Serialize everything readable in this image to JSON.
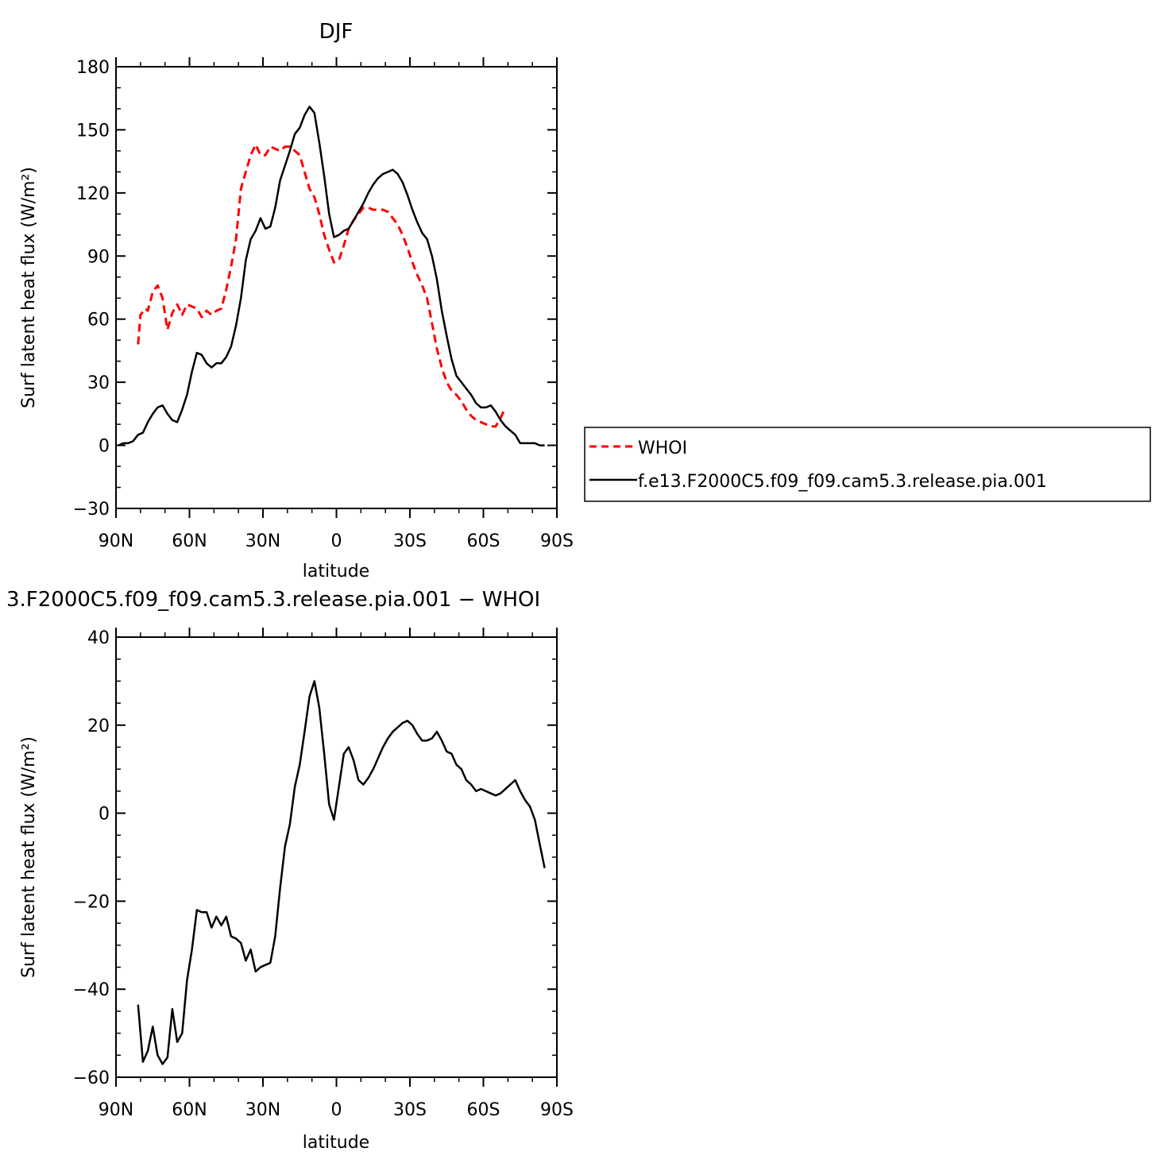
{
  "chart_data": [
    {
      "type": "line",
      "title": "DJF",
      "xlabel": "latitude",
      "ylabel": "Surf latent heat flux (W/m²)",
      "xlim": [
        -90,
        90
      ],
      "ylim": [
        -30,
        180
      ],
      "x_ticks": [
        -90,
        -60,
        -30,
        0,
        30,
        60,
        90
      ],
      "x_tick_labels": [
        "90N",
        "60N",
        "30N",
        "0",
        "30S",
        "60S",
        "90S"
      ],
      "y_ticks": [
        -30,
        0,
        30,
        60,
        90,
        120,
        150,
        180
      ],
      "y_tick_labels": [
        "−30",
        "0",
        "30",
        "60",
        "90",
        "120",
        "150",
        "180"
      ],
      "legend_position": "right",
      "series": [
        {
          "name": "WHOI",
          "color": "#ff0000",
          "dash": "dashed",
          "points": [
            [
              -81,
              48
            ],
            [
              -80,
              62
            ],
            [
              -78,
              65
            ],
            [
              -77,
              64
            ],
            [
              -75,
              73
            ],
            [
              -73,
              76
            ],
            [
              -71,
              70
            ],
            [
              -69,
              55
            ],
            [
              -67,
              63
            ],
            [
              -65,
              67
            ],
            [
              -63,
              62
            ],
            [
              -61,
              67
            ],
            [
              -59,
              66
            ],
            [
              -57,
              65
            ],
            [
              -55,
              61
            ],
            [
              -53,
              64
            ],
            [
              -51,
              62
            ],
            [
              -49,
              64
            ],
            [
              -47,
              65
            ],
            [
              -45,
              74
            ],
            [
              -43,
              85
            ],
            [
              -41,
              98
            ],
            [
              -39,
              122
            ],
            [
              -37,
              130
            ],
            [
              -35,
              138
            ],
            [
              -33,
              143
            ],
            [
              -31,
              138
            ],
            [
              -29,
              138
            ],
            [
              -27,
              142
            ],
            [
              -25,
              141
            ],
            [
              -23,
              140
            ],
            [
              -21,
              142
            ],
            [
              -19,
              142
            ],
            [
              -17,
              140
            ],
            [
              -15,
              138
            ],
            [
              -13,
              130
            ],
            [
              -11,
              122
            ],
            [
              -9,
              118
            ],
            [
              -7,
              110
            ],
            [
              -5,
              100
            ],
            [
              -3,
              93
            ],
            [
              -1,
              87
            ],
            [
              1,
              88
            ],
            [
              3,
              95
            ],
            [
              5,
              103
            ],
            [
              7,
              107
            ],
            [
              9,
              110
            ],
            [
              11,
              113
            ],
            [
              13,
              113
            ],
            [
              15,
              112
            ],
            [
              17,
              112
            ],
            [
              19,
              112
            ],
            [
              21,
              111
            ],
            [
              23,
              108
            ],
            [
              25,
              105
            ],
            [
              27,
              100
            ],
            [
              29,
              94
            ],
            [
              31,
              87
            ],
            [
              33,
              81
            ],
            [
              35,
              76
            ],
            [
              37,
              70
            ],
            [
              39,
              58
            ],
            [
              41,
              46
            ],
            [
              43,
              37
            ],
            [
              45,
              30
            ],
            [
              47,
              26
            ],
            [
              49,
              24
            ],
            [
              51,
              21
            ],
            [
              53,
              17
            ],
            [
              55,
              14
            ],
            [
              57,
              12
            ],
            [
              59,
              11
            ],
            [
              61,
              10
            ],
            [
              63,
              9
            ],
            [
              65,
              9
            ],
            [
              67,
              13
            ],
            [
              69,
              18
            ]
          ]
        },
        {
          "name": "f.e13.F2000C5.f09_f09.cam5.3.release.pia.001",
          "color": "#000000",
          "dash": "solid",
          "points": [
            [
              -89,
              0
            ],
            [
              -87,
              1
            ],
            [
              -85,
              1
            ],
            [
              -83,
              2
            ],
            [
              -81,
              5
            ],
            [
              -79,
              6
            ],
            [
              -77,
              11
            ],
            [
              -75,
              15
            ],
            [
              -73,
              18
            ],
            [
              -71,
              19
            ],
            [
              -69,
              15
            ],
            [
              -67,
              12
            ],
            [
              -65,
              11
            ],
            [
              -63,
              17
            ],
            [
              -61,
              24
            ],
            [
              -59,
              35
            ],
            [
              -57,
              44
            ],
            [
              -55,
              43
            ],
            [
              -53,
              39
            ],
            [
              -51,
              37
            ],
            [
              -49,
              39
            ],
            [
              -47,
              39
            ],
            [
              -45,
              42
            ],
            [
              -43,
              47
            ],
            [
              -41,
              57
            ],
            [
              -39,
              70
            ],
            [
              -37,
              88
            ],
            [
              -35,
              98
            ],
            [
              -33,
              102
            ],
            [
              -31,
              108
            ],
            [
              -29,
              103
            ],
            [
              -27,
              104
            ],
            [
              -25,
              113
            ],
            [
              -23,
              126
            ],
            [
              -21,
              133
            ],
            [
              -19,
              140
            ],
            [
              -17,
              148
            ],
            [
              -15,
              151
            ],
            [
              -13,
              157
            ],
            [
              -11,
              161
            ],
            [
              -9,
              158
            ],
            [
              -7,
              144
            ],
            [
              -5,
              128
            ],
            [
              -3,
              110
            ],
            [
              -1,
              99
            ],
            [
              1,
              100
            ],
            [
              3,
              102
            ],
            [
              5,
              103
            ],
            [
              7,
              107
            ],
            [
              9,
              111
            ],
            [
              11,
              115
            ],
            [
              13,
              120
            ],
            [
              15,
              124
            ],
            [
              17,
              127
            ],
            [
              19,
              129
            ],
            [
              21,
              130
            ],
            [
              23,
              131
            ],
            [
              25,
              129
            ],
            [
              27,
              125
            ],
            [
              29,
              119
            ],
            [
              31,
              112
            ],
            [
              33,
              106
            ],
            [
              35,
              101
            ],
            [
              37,
              98
            ],
            [
              39,
              90
            ],
            [
              41,
              79
            ],
            [
              43,
              64
            ],
            [
              45,
              52
            ],
            [
              47,
              41
            ],
            [
              49,
              33
            ],
            [
              51,
              30
            ],
            [
              53,
              27
            ],
            [
              55,
              24
            ],
            [
              57,
              20
            ],
            [
              59,
              18
            ],
            [
              61,
              18
            ],
            [
              63,
              19
            ],
            [
              65,
              16
            ],
            [
              67,
              12
            ],
            [
              69,
              9
            ],
            [
              71,
              7
            ],
            [
              73,
              5
            ],
            [
              75,
              1
            ],
            [
              77,
              1
            ],
            [
              79,
              1
            ],
            [
              81,
              1
            ],
            [
              83,
              0
            ],
            [
              85,
              0
            ]
          ]
        }
      ]
    },
    {
      "type": "line",
      "title": "3.F2000C5.f09_f09.cam5.3.release.pia.001 − WHOI",
      "xlabel": "latitude",
      "ylabel": "Surf latent heat flux (W/m²)",
      "xlim": [
        -90,
        90
      ],
      "ylim": [
        -60,
        40
      ],
      "x_ticks": [
        -90,
        -60,
        -30,
        0,
        30,
        60,
        90
      ],
      "x_tick_labels": [
        "90N",
        "60N",
        "30N",
        "0",
        "30S",
        "60S",
        "90S"
      ],
      "y_ticks": [
        -60,
        -40,
        -20,
        0,
        20,
        40
      ],
      "y_tick_labels": [
        "−60",
        "−40",
        "−20",
        "0",
        "20",
        "40"
      ],
      "series": [
        {
          "color": "#000000",
          "dash": "solid",
          "points": [
            [
              -81,
              -43.5
            ],
            [
              -79,
              -56.5
            ],
            [
              -77,
              -54
            ],
            [
              -75,
              -48.5
            ],
            [
              -73,
              -55
            ],
            [
              -71,
              -57
            ],
            [
              -69,
              -55.5
            ],
            [
              -67,
              -44.5
            ],
            [
              -65,
              -52
            ],
            [
              -63,
              -50
            ],
            [
              -61,
              -38
            ],
            [
              -59,
              -31
            ],
            [
              -57,
              -22
            ],
            [
              -55,
              -22.5
            ],
            [
              -53,
              -22.5
            ],
            [
              -51,
              -26
            ],
            [
              -49,
              -23.5
            ],
            [
              -47,
              -25.5
            ],
            [
              -45,
              -23.5
            ],
            [
              -43,
              -28
            ],
            [
              -41,
              -28.5
            ],
            [
              -39,
              -29.5
            ],
            [
              -37,
              -33.5
            ],
            [
              -35,
              -31
            ],
            [
              -33,
              -36
            ],
            [
              -31,
              -35
            ],
            [
              -29,
              -34.5
            ],
            [
              -27,
              -34
            ],
            [
              -25,
              -28
            ],
            [
              -23,
              -17
            ],
            [
              -21,
              -7.5
            ],
            [
              -19,
              -2.5
            ],
            [
              -17,
              6
            ],
            [
              -15,
              11
            ],
            [
              -13,
              18.5
            ],
            [
              -11,
              26.5
            ],
            [
              -9,
              30
            ],
            [
              -7,
              24
            ],
            [
              -5,
              13.5
            ],
            [
              -3,
              2
            ],
            [
              -1,
              -1.5
            ],
            [
              1,
              6
            ],
            [
              3,
              13.5
            ],
            [
              5,
              15
            ],
            [
              7,
              12
            ],
            [
              9,
              7.5
            ],
            [
              11,
              6.5
            ],
            [
              13,
              8
            ],
            [
              15,
              10
            ],
            [
              17,
              12.5
            ],
            [
              19,
              15
            ],
            [
              21,
              17
            ],
            [
              23,
              18.5
            ],
            [
              25,
              19.5
            ],
            [
              27,
              20.5
            ],
            [
              29,
              21
            ],
            [
              31,
              20
            ],
            [
              33,
              18
            ],
            [
              35,
              16.5
            ],
            [
              37,
              16.5
            ],
            [
              39,
              17
            ],
            [
              41,
              18.5
            ],
            [
              43,
              16.5
            ],
            [
              45,
              14
            ],
            [
              47,
              13.5
            ],
            [
              49,
              11
            ],
            [
              51,
              10
            ],
            [
              53,
              7.5
            ],
            [
              55,
              6.5
            ],
            [
              57,
              5
            ],
            [
              59,
              5.5
            ],
            [
              61,
              5
            ],
            [
              63,
              4.5
            ],
            [
              65,
              4
            ],
            [
              67,
              4.5
            ],
            [
              69,
              5.5
            ],
            [
              71,
              6.5
            ],
            [
              73,
              7.5
            ],
            [
              75,
              5
            ],
            [
              77,
              3
            ],
            [
              79,
              1.5
            ],
            [
              81,
              -1.5
            ],
            [
              83,
              -7
            ],
            [
              85,
              -12.5
            ]
          ]
        }
      ]
    }
  ]
}
